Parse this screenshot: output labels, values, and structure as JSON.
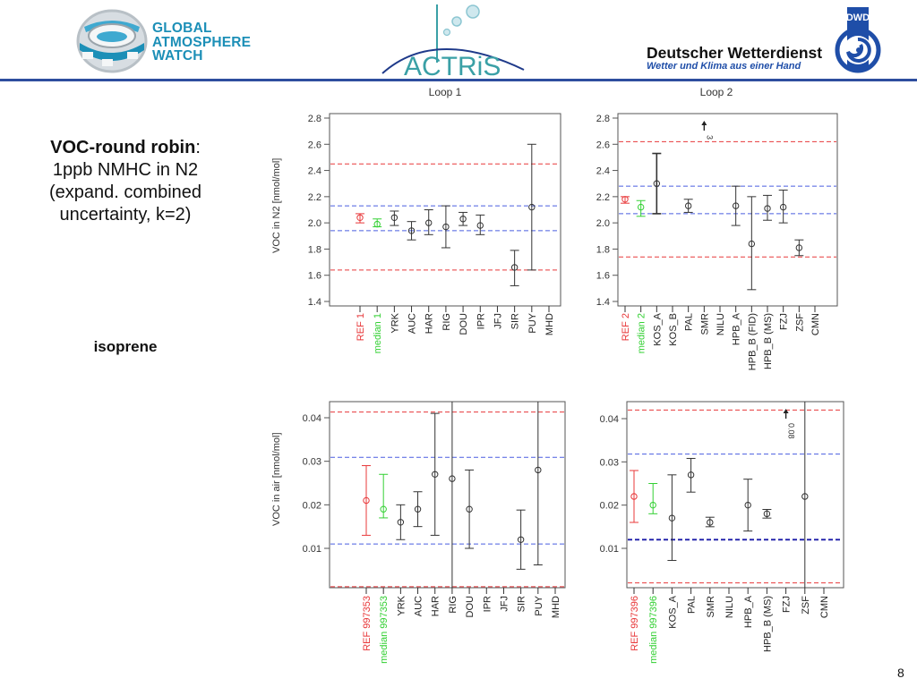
{
  "header": {
    "gaw_logo_lines": [
      "GLOBAL",
      "ATMOSPHERE",
      "WATCH"
    ],
    "actris_logo_text": "ACTRiS",
    "dwd_title": "Deutscher Wetterdienst",
    "dwd_subtitle": "Wetter und Klima aus einer Hand",
    "dwd_badge": "DWD",
    "colors": {
      "gaw_blue": "#1c8fb7",
      "actris_teal": "#3aa0a6",
      "dwd_blue": "#1f4ea8",
      "rule": "#2e4e9e"
    }
  },
  "side": {
    "title_bold": "VOC-round robin",
    "title_colon": ":",
    "title_lines": [
      "1ppb NMHC in N2",
      "(expand. combined",
      "uncertainty, k=2)"
    ],
    "compound": "isoprene"
  },
  "page_number": "8",
  "chart_data": [
    {
      "id": "loop1-n2",
      "type": "errorbar",
      "title": "Loop 1",
      "ylabel": "VOC in N2 [nmol/mol]",
      "ylim": [
        1.4,
        2.8
      ],
      "yticks": [
        "1.4",
        "1.6",
        "1.8",
        "2.0",
        "2.2",
        "2.4",
        "2.6",
        "2.8"
      ],
      "ytick_values": [
        1.4,
        1.6,
        1.8,
        2.0,
        2.2,
        2.4,
        2.6,
        2.8
      ],
      "categories": [
        "REF 1",
        "median 1",
        "YRK",
        "AUC",
        "HAR",
        "RIG",
        "DOU",
        "IPR",
        "JFJ",
        "SIR",
        "PUY",
        "MHD"
      ],
      "category_colors": [
        "#e8383a",
        "#33d033",
        "#222222",
        "#222222",
        "#222222",
        "#222222",
        "#222222",
        "#222222",
        "#222222",
        "#222222",
        "#222222",
        "#222222"
      ],
      "points": [
        {
          "cat": "REF 1",
          "value": 2.04,
          "low": 2.0,
          "high": 2.07,
          "color": "#e8383a"
        },
        {
          "cat": "median 1",
          "value": 1.99,
          "low": 1.97,
          "high": 2.03,
          "color": "#33d033"
        },
        {
          "cat": "YRK",
          "value": 2.04,
          "low": 1.98,
          "high": 2.09
        },
        {
          "cat": "AUC",
          "value": 1.94,
          "low": 1.87,
          "high": 2.01
        },
        {
          "cat": "HAR",
          "value": 2.0,
          "low": 1.91,
          "high": 2.1
        },
        {
          "cat": "RIG",
          "value": 1.97,
          "low": 1.81,
          "high": 2.13
        },
        {
          "cat": "DOU",
          "value": 2.03,
          "low": 1.98,
          "high": 2.08
        },
        {
          "cat": "IPR",
          "value": 1.98,
          "low": 1.91,
          "high": 2.06
        },
        {
          "cat": "SIR",
          "value": 1.66,
          "low": 1.52,
          "high": 1.79
        },
        {
          "cat": "PUY",
          "value": 2.12,
          "low": 1.64,
          "high": 2.6
        }
      ],
      "hlines": [
        {
          "value": 2.45,
          "color": "#e8383a",
          "style": "dashed"
        },
        {
          "value": 2.13,
          "color": "#4a5ee0",
          "style": "dashed"
        },
        {
          "value": 1.94,
          "color": "#4a5ee0",
          "style": "dashed"
        },
        {
          "value": 1.64,
          "color": "#e8383a",
          "style": "dashed"
        }
      ],
      "annotations": []
    },
    {
      "id": "loop2-n2",
      "type": "errorbar",
      "title": "Loop 2",
      "ylabel": "",
      "ylim": [
        1.4,
        2.8
      ],
      "yticks": [
        "1.4",
        "1.6",
        "1.8",
        "2.0",
        "2.2",
        "2.4",
        "2.6",
        "2.8"
      ],
      "ytick_values": [
        1.4,
        1.6,
        1.8,
        2.0,
        2.2,
        2.4,
        2.6,
        2.8
      ],
      "categories": [
        "REF 2",
        "median 2",
        "KOS_A",
        "KOS_B",
        "PAL",
        "SMR",
        "NILU",
        "HPB_A",
        "HPB_B (FID)",
        "HPB_B (MS)",
        "FZJ",
        "ZSF",
        "CMN"
      ],
      "category_colors": [
        "#e8383a",
        "#33d033",
        "#222222",
        "#222222",
        "#222222",
        "#222222",
        "#222222",
        "#222222",
        "#222222",
        "#222222",
        "#222222",
        "#222222",
        "#222222"
      ],
      "points": [
        {
          "cat": "REF 2",
          "value": 2.18,
          "low": 2.15,
          "high": 2.2,
          "color": "#e8383a"
        },
        {
          "cat": "median 2",
          "value": 2.12,
          "low": 2.05,
          "high": 2.17,
          "color": "#33d033"
        },
        {
          "cat": "KOS_A",
          "value": 2.3,
          "low": 2.07,
          "high": 2.53,
          "bold": true
        },
        {
          "cat": "PAL",
          "value": 2.13,
          "low": 2.08,
          "high": 2.18
        },
        {
          "cat": "HPB_A",
          "value": 2.13,
          "low": 1.98,
          "high": 2.28
        },
        {
          "cat": "HPB_B (FID)",
          "value": 1.84,
          "low": 1.49,
          "high": 2.2
        },
        {
          "cat": "HPB_B (MS)",
          "value": 2.11,
          "low": 2.02,
          "high": 2.21
        },
        {
          "cat": "FZJ",
          "value": 2.12,
          "low": 2.0,
          "high": 2.25
        },
        {
          "cat": "ZSF",
          "value": 1.81,
          "low": 1.75,
          "high": 1.87
        }
      ],
      "hlines": [
        {
          "value": 2.62,
          "color": "#e8383a",
          "style": "dashed"
        },
        {
          "value": 2.28,
          "color": "#4a5ee0",
          "style": "dashed"
        },
        {
          "value": 2.07,
          "color": "#4a5ee0",
          "style": "dashed"
        },
        {
          "value": 1.74,
          "color": "#e8383a",
          "style": "dashed"
        }
      ],
      "annotations": [
        {
          "cat": "SMR",
          "text": "3",
          "note": "off-scale arrow, value 3"
        }
      ]
    },
    {
      "id": "loop1-air",
      "type": "errorbar",
      "title": "",
      "ylabel": "VOC in air [nmol/mol]",
      "ylim": [
        0.001,
        0.0435
      ],
      "yticks": [
        "0.01",
        "0.02",
        "0.03",
        "0.04"
      ],
      "ytick_values": [
        0.01,
        0.02,
        0.03,
        0.04
      ],
      "categories": [
        "REF 997353",
        "median 997353",
        "YRK",
        "AUC",
        "HAR",
        "RIG",
        "DOU",
        "IPR",
        "JFJ",
        "SIR",
        "PUY",
        "MHD"
      ],
      "category_colors": [
        "#e8383a",
        "#33d033",
        "#222222",
        "#222222",
        "#222222",
        "#222222",
        "#222222",
        "#222222",
        "#222222",
        "#222222",
        "#222222",
        "#222222"
      ],
      "points": [
        {
          "cat": "REF 997353",
          "value": 0.021,
          "low": 0.013,
          "high": 0.029,
          "color": "#e8383a"
        },
        {
          "cat": "median 997353",
          "value": 0.019,
          "low": 0.017,
          "high": 0.027,
          "color": "#33d033"
        },
        {
          "cat": "YRK",
          "value": 0.016,
          "low": 0.012,
          "high": 0.02
        },
        {
          "cat": "AUC",
          "value": 0.019,
          "low": 0.015,
          "high": 0.023
        },
        {
          "cat": "HAR",
          "value": 0.027,
          "low": 0.013,
          "high": 0.041
        },
        {
          "cat": "RIG",
          "value": 0.026,
          "low": 0.0,
          "high": 0.05,
          "unbounded": true
        },
        {
          "cat": "DOU",
          "value": 0.019,
          "low": 0.01,
          "high": 0.028
        },
        {
          "cat": "SIR",
          "value": 0.012,
          "low": 0.0052,
          "high": 0.0188
        },
        {
          "cat": "PUY",
          "value": 0.028,
          "low": 0.0062,
          "high": 0.05,
          "unbounded_high": true
        }
      ],
      "hlines": [
        {
          "value": 0.0413,
          "color": "#e8383a",
          "style": "dashed"
        },
        {
          "value": 0.0309,
          "color": "#4a5ee0",
          "style": "dashed"
        },
        {
          "value": 0.011,
          "color": "#4a5ee0",
          "style": "dashed"
        },
        {
          "value": 0.0012,
          "color": "#e8383a",
          "style": "dashed"
        }
      ],
      "annotations": []
    },
    {
      "id": "loop2-air",
      "type": "errorbar",
      "title": "",
      "ylabel": "",
      "ylim": [
        0.001,
        0.0435
      ],
      "yticks": [
        "0.01",
        "0.02",
        "0.03",
        "0.04"
      ],
      "ytick_values": [
        0.01,
        0.02,
        0.03,
        0.04
      ],
      "categories": [
        "REF 997396",
        "median 997396",
        "KOS_A",
        "PAL",
        "SMR",
        "NILU",
        "HPB_A",
        "HPB_B (MS)",
        "FZJ",
        "ZSF",
        "CMN"
      ],
      "category_colors": [
        "#e8383a",
        "#33d033",
        "#222222",
        "#222222",
        "#222222",
        "#222222",
        "#222222",
        "#222222",
        "#222222",
        "#222222",
        "#222222"
      ],
      "points": [
        {
          "cat": "REF 997396",
          "value": 0.022,
          "low": 0.016,
          "high": 0.028,
          "color": "#e8383a"
        },
        {
          "cat": "median 997396",
          "value": 0.02,
          "low": 0.018,
          "high": 0.025,
          "color": "#33d033"
        },
        {
          "cat": "KOS_A",
          "value": 0.017,
          "low": 0.0072,
          "high": 0.027
        },
        {
          "cat": "PAL",
          "value": 0.027,
          "low": 0.023,
          "high": 0.0308
        },
        {
          "cat": "SMR",
          "value": 0.016,
          "low": 0.015,
          "high": 0.0172
        },
        {
          "cat": "HPB_A",
          "value": 0.02,
          "low": 0.014,
          "high": 0.026
        },
        {
          "cat": "HPB_B (MS)",
          "value": 0.018,
          "low": 0.017,
          "high": 0.019
        },
        {
          "cat": "ZSF",
          "value": 0.022,
          "low": 0.0,
          "high": 0.05,
          "unbounded": true
        }
      ],
      "hlines": [
        {
          "value": 0.042,
          "color": "#e8383a",
          "style": "dashed"
        },
        {
          "value": 0.0318,
          "color": "#4a5ee0",
          "style": "dashed"
        },
        {
          "value": 0.012,
          "color": "#1a1aa8",
          "style": "dashed",
          "bold": true
        },
        {
          "value": 0.002,
          "color": "#e8383a",
          "style": "dashed"
        }
      ],
      "annotations": [
        {
          "cat": "FZJ",
          "text": "0.08",
          "note": "off-scale arrow, value 0.08"
        }
      ]
    }
  ]
}
